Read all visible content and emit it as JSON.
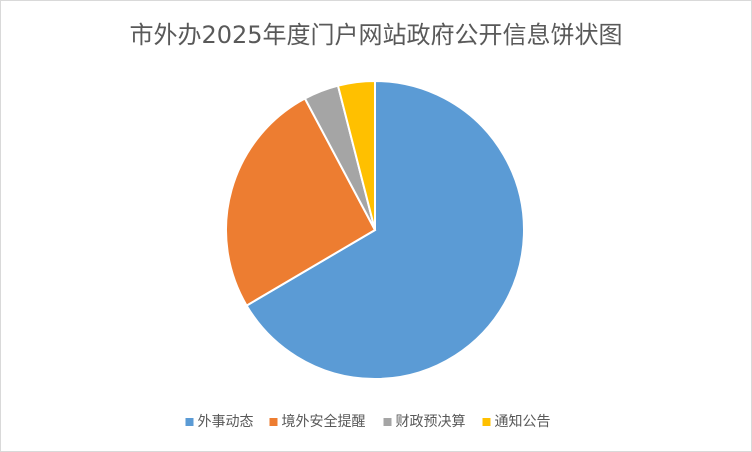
{
  "chart_data": {
    "type": "pie",
    "title": "市外办2025年度门户网站政府公开信息饼状图",
    "categories": [
      "外事动态",
      "境外安全提醒",
      "财政预决算",
      "通知公告"
    ],
    "values": [
      66.6,
      25.7,
      3.8,
      4.0
    ],
    "colors": [
      "#5b9bd5",
      "#ed7d31",
      "#a5a5a5",
      "#ffc000"
    ],
    "legend": "bottom"
  }
}
